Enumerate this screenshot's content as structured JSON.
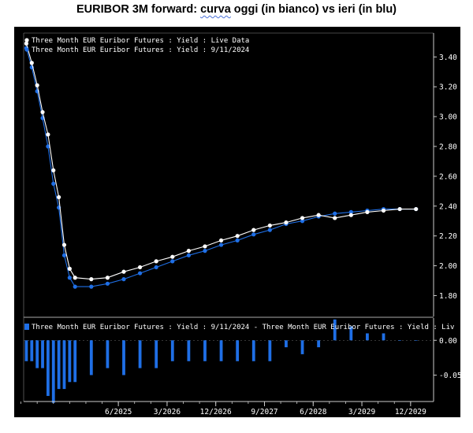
{
  "title": {
    "before": "EURIBOR 3M forward: ",
    "marked": "curva",
    "after": " oggi (in bianco) vs ieri (in blu)"
  },
  "colors": {
    "background": "#000000",
    "today_line": "#ffffff",
    "yesterday_line": "#1f6fe6",
    "axis": "#cccccc",
    "bars": "#1f6fe6"
  },
  "chart_data": [
    {
      "type": "line",
      "legend_position": "top-left",
      "grid": false,
      "ylim": [
        1.66,
        3.56
      ],
      "y_ticks": [
        "3.40",
        "3.20",
        "3.00",
        "2.80",
        "2.60",
        "2.40",
        "2.20",
        "2.00",
        "1.80"
      ],
      "y_tick_values": [
        3.4,
        3.2,
        3.0,
        2.8,
        2.6,
        2.4,
        2.2,
        2.0,
        1.8
      ],
      "x_ticks": [
        "6/2025",
        "3/2026",
        "12/2026",
        "9/2027",
        "6/2028",
        "3/2029",
        "12/2029"
      ],
      "x_tick_months": [
        17,
        26,
        35,
        44,
        53,
        62,
        71
      ],
      "xlim": [
        -0.5,
        73.5
      ],
      "x_months": [
        0,
        1,
        2,
        3,
        4,
        5,
        6,
        7,
        8,
        9,
        12,
        15,
        18,
        21,
        24,
        27,
        30,
        33,
        36,
        39,
        42,
        45,
        48,
        51,
        54,
        57,
        60,
        63,
        66,
        69,
        72
      ],
      "series": [
        {
          "name": "Three Month EUR Euribor Futures : Yield : Live Data",
          "values": [
            3.49,
            3.36,
            3.21,
            3.03,
            2.88,
            2.64,
            2.46,
            2.14,
            1.98,
            1.92,
            1.91,
            1.92,
            1.96,
            1.99,
            2.03,
            2.06,
            2.1,
            2.13,
            2.17,
            2.2,
            2.24,
            2.27,
            2.29,
            2.32,
            2.34,
            2.32,
            2.34,
            2.36,
            2.37,
            2.38,
            2.38
          ]
        },
        {
          "name": "Three Month EUR Euribor Futures : Yield : 9/11/2024",
          "values": [
            3.46,
            3.33,
            3.17,
            2.99,
            2.8,
            2.55,
            2.39,
            2.07,
            1.92,
            1.86,
            1.86,
            1.88,
            1.91,
            1.95,
            1.99,
            2.03,
            2.07,
            2.1,
            2.14,
            2.17,
            2.21,
            2.24,
            2.28,
            2.3,
            2.33,
            2.35,
            2.36,
            2.37,
            2.38,
            2.38,
            2.38
          ]
        }
      ]
    },
    {
      "type": "bar",
      "legend_position": "top-left",
      "ylim": [
        -0.088,
        0.032
      ],
      "y_ticks": [
        "0.00",
        "-0.05"
      ],
      "y_tick_values": [
        0.0,
        -0.05
      ],
      "series": [
        {
          "name": "Three Month EUR Euribor Futures : Yield : 9/11/2024 - Three Month EUR Euribor Futures : Yield : Liv",
          "values": [
            -0.03,
            -0.03,
            -0.04,
            -0.04,
            -0.08,
            -0.09,
            -0.07,
            -0.07,
            -0.06,
            -0.06,
            -0.05,
            -0.04,
            -0.05,
            -0.04,
            -0.04,
            -0.03,
            -0.03,
            -0.03,
            -0.03,
            -0.03,
            -0.03,
            -0.03,
            -0.01,
            -0.02,
            -0.01,
            0.03,
            0.02,
            0.01,
            0.01,
            0.0,
            0.0
          ]
        }
      ]
    }
  ]
}
